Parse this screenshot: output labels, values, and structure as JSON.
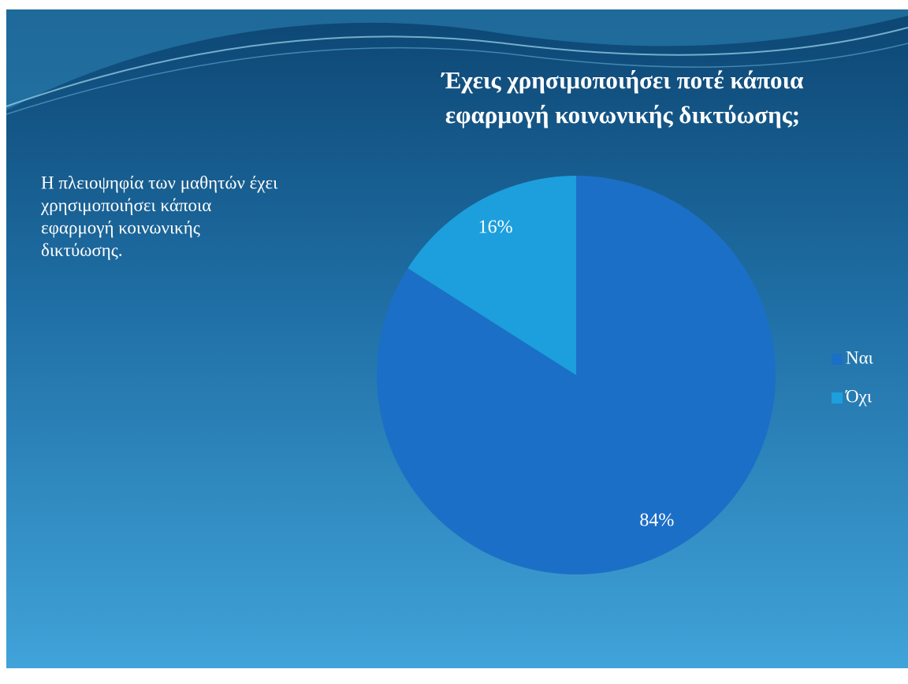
{
  "chart_data": {
    "type": "pie",
    "title": [
      "Έχεις χρησιμοποιήσει ποτέ κάποια",
      "εφαρμογή κοινωνικής  δικτύωσης;"
    ],
    "annotation": [
      "Η πλειοψηφία των μαθητών έχει",
      "χρησιμοποιήσει κάποια",
      "εφαρμογή κοινωνικής",
      "δικτύωσης."
    ],
    "categories": [
      "Ναι",
      "Όχι"
    ],
    "values": [
      84,
      16
    ],
    "value_labels": [
      "84%",
      "16%"
    ],
    "colors": [
      "#1c6fc6",
      "#1c9fdc"
    ],
    "legend": "right"
  }
}
